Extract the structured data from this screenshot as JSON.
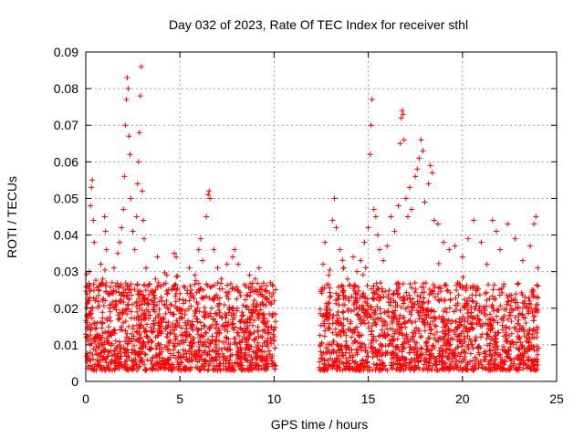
{
  "chart_data": {
    "type": "scatter",
    "title": "Day 032 of 2023, Rate Of TEC Index for receiver sthl",
    "xlabel": "GPS time / hours",
    "ylabel": "ROTI / TECUs",
    "xlim": [
      0,
      25
    ],
    "ylim": [
      0,
      0.09
    ],
    "x_ticks": [
      0,
      5,
      10,
      15,
      20,
      25
    ],
    "x_tick_labels": [
      "0",
      "5",
      "10",
      "15",
      "20",
      "25"
    ],
    "y_ticks": [
      0,
      0.01,
      0.02,
      0.03,
      0.04,
      0.05,
      0.06,
      0.07,
      0.08,
      0.09
    ],
    "y_tick_labels": [
      "0",
      "0.01",
      "0.02",
      "0.03",
      "0.04",
      "0.05",
      "0.06",
      "0.07",
      "0.08",
      "0.09"
    ],
    "grid": true,
    "marker": "+",
    "marker_color": "#ff0000",
    "data_gap_hours": [
      10.1,
      12.4
    ],
    "series": [
      {
        "name": "ROTI",
        "points": [
          [
            0.05,
            0.018
          ],
          [
            0.1,
            0.012
          ],
          [
            0.15,
            0.026
          ],
          [
            0.2,
            0.03
          ],
          [
            0.25,
            0.048
          ],
          [
            0.3,
            0.053
          ],
          [
            0.35,
            0.055
          ],
          [
            0.4,
            0.044
          ],
          [
            0.45,
            0.038
          ],
          [
            0.5,
            0.022
          ],
          [
            0.6,
            0.016
          ],
          [
            0.7,
            0.025
          ],
          [
            0.8,
            0.032
          ],
          [
            0.9,
            0.028
          ],
          [
            1.0,
            0.045
          ],
          [
            1.05,
            0.041
          ],
          [
            1.1,
            0.036
          ],
          [
            1.2,
            0.024
          ],
          [
            1.3,
            0.019
          ],
          [
            1.4,
            0.027
          ],
          [
            1.5,
            0.031
          ],
          [
            1.6,
            0.022
          ],
          [
            1.7,
            0.035
          ],
          [
            1.8,
            0.038
          ],
          [
            1.9,
            0.042
          ],
          [
            2.0,
            0.047
          ],
          [
            2.05,
            0.056
          ],
          [
            2.1,
            0.07
          ],
          [
            2.15,
            0.077
          ],
          [
            2.2,
            0.083
          ],
          [
            2.25,
            0.08
          ],
          [
            2.3,
            0.067
          ],
          [
            2.35,
            0.062
          ],
          [
            2.4,
            0.05
          ],
          [
            2.5,
            0.041
          ],
          [
            2.6,
            0.036
          ],
          [
            2.7,
            0.045
          ],
          [
            2.75,
            0.054
          ],
          [
            2.8,
            0.06
          ],
          [
            2.85,
            0.068
          ],
          [
            2.9,
            0.078
          ],
          [
            2.95,
            0.086
          ],
          [
            3.0,
            0.052
          ],
          [
            3.05,
            0.044
          ],
          [
            3.1,
            0.039
          ],
          [
            3.2,
            0.031
          ],
          [
            3.3,
            0.026
          ],
          [
            3.5,
            0.022
          ],
          [
            3.7,
            0.028
          ],
          [
            3.8,
            0.034
          ],
          [
            4.0,
            0.023
          ],
          [
            4.3,
            0.029
          ],
          [
            4.5,
            0.021
          ],
          [
            4.7,
            0.035
          ],
          [
            4.8,
            0.034
          ],
          [
            5.0,
            0.024
          ],
          [
            5.2,
            0.026
          ],
          [
            5.5,
            0.031
          ],
          [
            5.8,
            0.029
          ],
          [
            6.0,
            0.036
          ],
          [
            6.1,
            0.039
          ],
          [
            6.2,
            0.033
          ],
          [
            6.4,
            0.045
          ],
          [
            6.5,
            0.051
          ],
          [
            6.55,
            0.052
          ],
          [
            6.6,
            0.05
          ],
          [
            6.8,
            0.036
          ],
          [
            7.0,
            0.031
          ],
          [
            7.2,
            0.028
          ],
          [
            7.5,
            0.032
          ],
          [
            7.8,
            0.034
          ],
          [
            7.9,
            0.036
          ],
          [
            8.1,
            0.032
          ],
          [
            8.5,
            0.026
          ],
          [
            8.7,
            0.029
          ],
          [
            9.0,
            0.028
          ],
          [
            9.2,
            0.031
          ],
          [
            9.5,
            0.025
          ],
          [
            9.8,
            0.027
          ],
          [
            10.0,
            0.022
          ],
          [
            12.5,
            0.025
          ],
          [
            12.6,
            0.032
          ],
          [
            12.7,
            0.038
          ],
          [
            12.9,
            0.029
          ],
          [
            13.1,
            0.044
          ],
          [
            13.2,
            0.05
          ],
          [
            13.3,
            0.042
          ],
          [
            13.5,
            0.036
          ],
          [
            13.7,
            0.031
          ],
          [
            13.9,
            0.028
          ],
          [
            14.2,
            0.034
          ],
          [
            14.4,
            0.03
          ],
          [
            14.6,
            0.033
          ],
          [
            14.8,
            0.038
          ],
          [
            15.0,
            0.042
          ],
          [
            15.1,
            0.062
          ],
          [
            15.15,
            0.07
          ],
          [
            15.2,
            0.077
          ],
          [
            15.3,
            0.047
          ],
          [
            15.4,
            0.045
          ],
          [
            15.5,
            0.04
          ],
          [
            15.6,
            0.036
          ],
          [
            15.8,
            0.033
          ],
          [
            16.0,
            0.037
          ],
          [
            16.2,
            0.045
          ],
          [
            16.4,
            0.041
          ],
          [
            16.6,
            0.048
          ],
          [
            16.7,
            0.065
          ],
          [
            16.75,
            0.072
          ],
          [
            16.8,
            0.074
          ],
          [
            16.85,
            0.073
          ],
          [
            16.9,
            0.066
          ],
          [
            17.0,
            0.05
          ],
          [
            17.1,
            0.045
          ],
          [
            17.2,
            0.053
          ],
          [
            17.3,
            0.047
          ],
          [
            17.5,
            0.056
          ],
          [
            17.6,
            0.058
          ],
          [
            17.7,
            0.061
          ],
          [
            17.8,
            0.066
          ],
          [
            17.9,
            0.063
          ],
          [
            18.0,
            0.049
          ],
          [
            18.2,
            0.054
          ],
          [
            18.3,
            0.059
          ],
          [
            18.4,
            0.057
          ],
          [
            18.5,
            0.044
          ],
          [
            18.7,
            0.043
          ],
          [
            19.0,
            0.038
          ],
          [
            19.3,
            0.036
          ],
          [
            19.6,
            0.037
          ],
          [
            20.0,
            0.034
          ],
          [
            20.3,
            0.039
          ],
          [
            20.6,
            0.044
          ],
          [
            21.0,
            0.038
          ],
          [
            21.3,
            0.032
          ],
          [
            21.6,
            0.044
          ],
          [
            21.8,
            0.041
          ],
          [
            22.0,
            0.036
          ],
          [
            22.4,
            0.043
          ],
          [
            22.8,
            0.039
          ],
          [
            23.2,
            0.033
          ],
          [
            23.6,
            0.037
          ],
          [
            23.8,
            0.043
          ],
          [
            23.9,
            0.045
          ],
          [
            24.0,
            0.031
          ]
        ]
      }
    ]
  }
}
